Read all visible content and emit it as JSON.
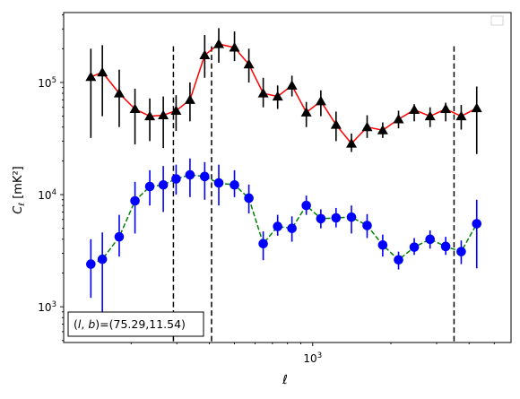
{
  "chart_data": {
    "type": "scatter",
    "xscale": "log",
    "yscale": "log",
    "xlim": [
      110,
      5800
    ],
    "ylim": [
      480,
      420000
    ],
    "xlabel": "ℓ",
    "ylabel_main": "C",
    "ylabel_sub": "ℓ",
    "ylabel_unit": "[mK²]",
    "x_tick_labels": [
      {
        "value": 1000,
        "base": "10",
        "exp": "3"
      }
    ],
    "y_tick_labels": [
      {
        "value": 1000,
        "base": "10",
        "exp": "3"
      },
      {
        "value": 10000,
        "base": "10",
        "exp": "4"
      },
      {
        "value": 100000,
        "base": "10",
        "exp": "5"
      }
    ],
    "annotation": "(l, b)=(75.29,11.54)",
    "annotation_parts": {
      "open": "(",
      "l": "l",
      "sep": ", ",
      "b": "b",
      "close": ")=(75.29,11.54)"
    },
    "vlines": [
      291,
      408,
      3500
    ],
    "grid": false,
    "legend": "top-right (empty)",
    "series": [
      {
        "marker": "triangle",
        "marker_color": "#000000",
        "line_color": "#ff0000",
        "line_style": "solid",
        "x": [
          140,
          155,
          180,
          207,
          236,
          266,
          298,
          337,
          384,
          435,
          500,
          568,
          645,
          733,
          832,
          945,
          1075,
          1230,
          1410,
          1620,
          1860,
          2140,
          2460,
          2830,
          3250,
          3730,
          4280
        ],
        "y": [
          112000,
          123000,
          80000,
          58000,
          50000,
          51000,
          56000,
          70000,
          175000,
          220000,
          205000,
          145000,
          80000,
          75000,
          94000,
          54000,
          68000,
          42000,
          28500,
          40000,
          37500,
          47000,
          57000,
          50000,
          58000,
          50000,
          59000
        ],
        "ylo": [
          32000,
          50000,
          40000,
          28000,
          30000,
          26000,
          37000,
          45000,
          110000,
          150000,
          155000,
          100000,
          60000,
          58000,
          75000,
          40000,
          50000,
          30000,
          24000,
          32000,
          32000,
          39000,
          45000,
          40000,
          45000,
          38000,
          23000
        ],
        "yhi": [
          200000,
          215000,
          130000,
          88000,
          72000,
          75000,
          77000,
          100000,
          265000,
          305000,
          285000,
          200000,
          110000,
          94000,
          115000,
          67000,
          85000,
          55000,
          35000,
          51000,
          44000,
          56000,
          64000,
          60000,
          66000,
          63000,
          92000
        ]
      },
      {
        "marker": "circle",
        "marker_color": "#0000ff",
        "line_color": "#008000",
        "line_style": "dashed",
        "x": [
          140,
          155,
          180,
          207,
          236,
          266,
          298,
          337,
          384,
          435,
          500,
          568,
          645,
          733,
          832,
          945,
          1075,
          1230,
          1410,
          1620,
          1860,
          2140,
          2460,
          2830,
          3250,
          3730,
          4280
        ],
        "y": [
          2400,
          2650,
          4200,
          8800,
          11800,
          12200,
          13800,
          15000,
          14500,
          12700,
          12200,
          9300,
          3650,
          5200,
          5000,
          8000,
          6100,
          6200,
          6300,
          5300,
          3550,
          2620,
          3400,
          4000,
          3450,
          3100,
          5500
        ],
        "ylo": [
          1200,
          700,
          2800,
          4500,
          8000,
          7000,
          10000,
          9500,
          9000,
          8000,
          9500,
          6800,
          2600,
          4300,
          3800,
          6600,
          5000,
          5100,
          4500,
          4100,
          2800,
          2150,
          2900,
          3300,
          2900,
          2400,
          2200
        ],
        "yhi": [
          4000,
          4600,
          6600,
          13000,
          16500,
          18000,
          18500,
          21000,
          19500,
          18500,
          16500,
          12300,
          4700,
          6600,
          6400,
          9800,
          7400,
          7600,
          8000,
          6700,
          4400,
          3100,
          4100,
          4800,
          4200,
          3900,
          9000
        ]
      }
    ]
  }
}
